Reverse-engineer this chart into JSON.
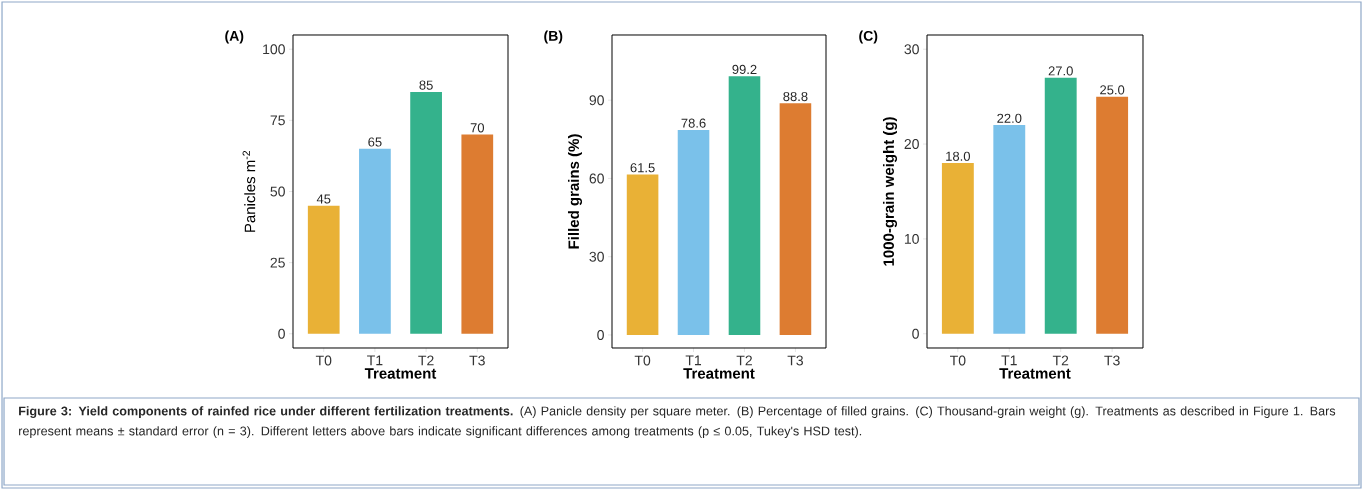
{
  "chart_data": [
    {
      "type": "bar",
      "title": "(A)",
      "xlabel": "Treatment",
      "ylabel": "Panicles m$^{-2}$",
      "categories": [
        "T0",
        "T1",
        "T2",
        "T3"
      ],
      "values": [
        45,
        65,
        85,
        70
      ],
      "colors": [
        "#e9b136",
        "#7ac1ea",
        "#34b28c",
        "#dd7c31"
      ],
      "value_labels": [
        "45",
        "65",
        "85",
        "70"
      ],
      "ylim": [
        -5,
        105
      ],
      "yticks": [
        0,
        25,
        50,
        75,
        100
      ],
      "annotations": [
        "**Figure 3: Yield components of rainfed rice under different fertilization treatments.** (A) Panicle density per square meter. (B) Percentage of filled grains. (C) Thousand-grain weight (g). Treatments as described in Figure 1. Bars represent means ± standard error (n = 3). Different letters above bars indicate significant differences among treatments (p ≤ 0.05, Tukey's HSD test)."
      ]
    },
    {
      "type": "bar",
      "title": "(B)",
      "xlabel": "Treatment",
      "ylabel": "Filled grains (%)",
      "categories": [
        "T0",
        "T1",
        "T2",
        "T3"
      ],
      "values": [
        61.5,
        78.6,
        99.2,
        88.8
      ],
      "colors": [
        "#e9b136",
        "#7ac1ea",
        "#34b28c",
        "#dd7c31"
      ],
      "value_labels": [
        "61.5",
        "78.6",
        "99.2",
        "88.8"
      ],
      "ylim": [
        -5,
        115
      ],
      "yticks": [
        0,
        30,
        60,
        90
      ]
    },
    {
      "type": "bar",
      "title": "(C)",
      "xlabel": "Treatment",
      "ylabel": "1000-grain weight (g)",
      "categories": [
        "T0",
        "T1",
        "T2",
        "T3"
      ],
      "values": [
        18.0,
        22.0,
        27.0,
        25.0
      ],
      "colors": [
        "#e9b136",
        "#7ac1ea",
        "#34b28c",
        "#dd7c31"
      ],
      "value_labels": [
        "18.0",
        "22.0",
        "27.0",
        "25.0"
      ],
      "ylim": [
        -1.5,
        31.5
      ],
      "yticks": [
        0,
        10,
        20,
        30
      ]
    }
  ]
}
